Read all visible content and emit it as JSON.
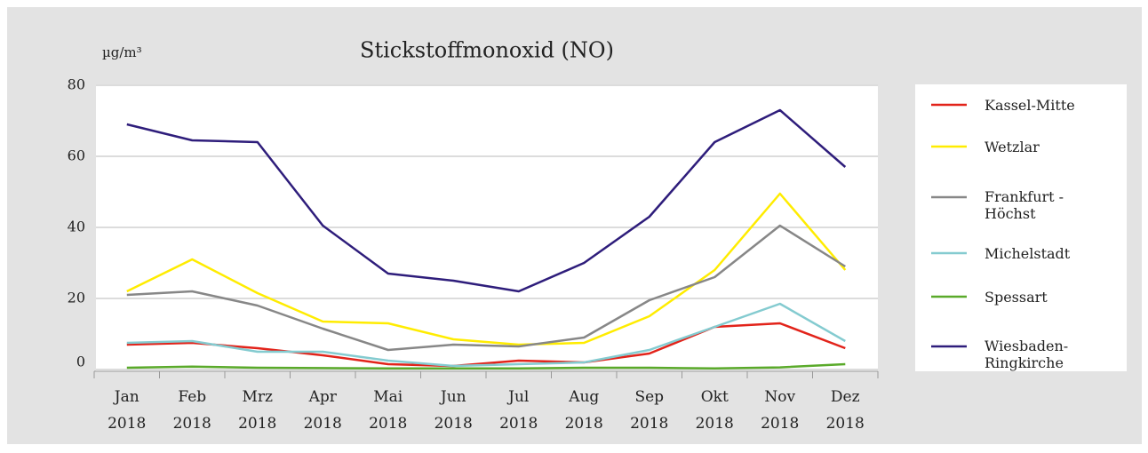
{
  "chart_data": {
    "type": "line",
    "title": "Stickstoffmonoxid (NO)",
    "unit": "µg/m³",
    "categories": [
      "Jan 2018",
      "Feb 2018",
      "Mrz 2018",
      "Apr 2018",
      "Mai 2018",
      "Jun 2018",
      "Jul 2018",
      "Aug 2018",
      "Sep 2018",
      "Okt 2018",
      "Nov 2018",
      "Dez 2018"
    ],
    "ylim": [
      0,
      80
    ],
    "yticks": [
      0,
      20,
      40,
      60,
      80
    ],
    "grid": true,
    "series": [
      {
        "name": "Kassel-Mitte",
        "color": "#e2231a",
        "values": [
          7,
          7.5,
          6,
          4,
          1.5,
          1,
          2.5,
          2,
          4.5,
          12,
          13,
          6
        ]
      },
      {
        "name": "Wetzlar",
        "color": "#ffec00",
        "values": [
          22,
          31,
          21.5,
          13.5,
          13,
          8.5,
          7,
          7.5,
          15,
          28,
          49.5,
          28
        ]
      },
      {
        "name": "Frankfurt - Höchst",
        "color": "#878787",
        "values": [
          21,
          22,
          18,
          11.5,
          5.5,
          7,
          6.5,
          9,
          19.5,
          26,
          40.5,
          29
        ]
      },
      {
        "name": "Michelstadt",
        "color": "#84cbd0",
        "values": [
          7.5,
          8,
          5,
          5,
          2.5,
          1,
          1.5,
          2,
          5.5,
          12,
          18.5,
          8
        ]
      },
      {
        "name": "Spessart",
        "color": "#5aaa2a",
        "values": [
          0.5,
          0.8,
          0.5,
          0.4,
          0.3,
          0.3,
          0.3,
          0.5,
          0.5,
          0.3,
          0.6,
          1.5
        ]
      },
      {
        "name": "Wiesbaden-Ringkirche",
        "color": "#2e1d7b",
        "values": [
          69,
          64.5,
          64,
          40.5,
          27,
          25,
          22,
          30,
          43,
          64,
          73,
          57
        ]
      }
    ]
  }
}
